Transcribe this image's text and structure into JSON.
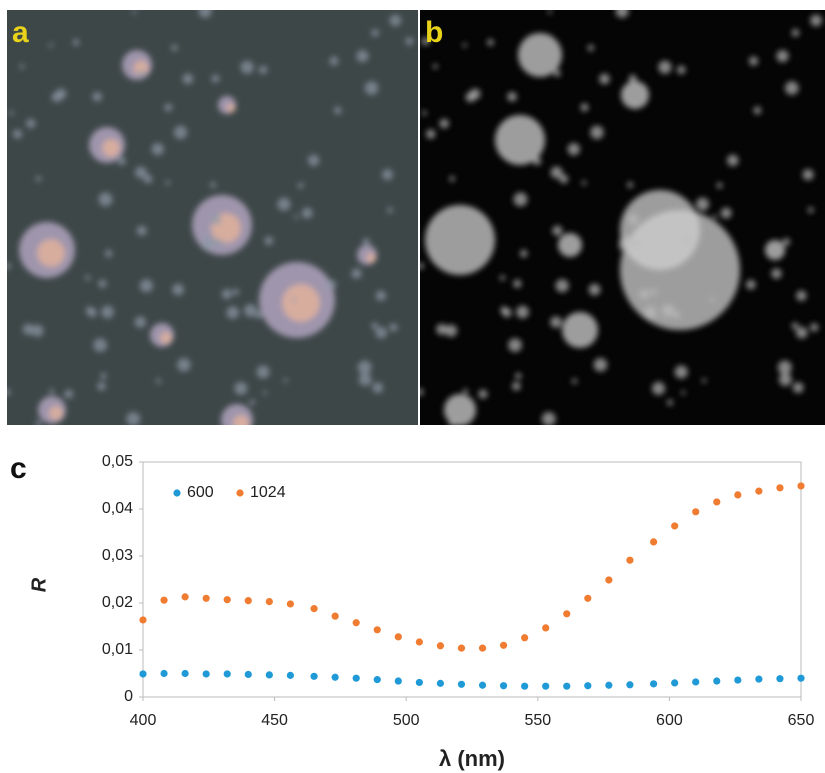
{
  "panel_labels": [
    "a",
    "b",
    "c"
  ],
  "chart_data": {
    "type": "scatter",
    "xlabel": "λ (nm)",
    "ylabel": "R",
    "x": [
      400,
      408,
      416,
      424,
      432,
      440,
      448,
      456,
      465,
      473,
      481,
      489,
      497,
      505,
      513,
      521,
      529,
      537,
      545,
      553,
      561,
      569,
      577,
      585,
      594,
      602,
      610,
      618,
      626,
      634,
      642,
      650
    ],
    "series": [
      {
        "name": "600",
        "color": "#1f9ad6",
        "values": [
          0.0049,
          0.005,
          0.005,
          0.0049,
          0.0049,
          0.0048,
          0.0047,
          0.0046,
          0.0044,
          0.0042,
          0.004,
          0.0037,
          0.0034,
          0.0031,
          0.0029,
          0.0027,
          0.0025,
          0.0024,
          0.0023,
          0.0023,
          0.0023,
          0.0024,
          0.0025,
          0.0026,
          0.0028,
          0.003,
          0.0032,
          0.0034,
          0.0036,
          0.0038,
          0.0039,
          0.004
        ]
      },
      {
        "name": "1024",
        "color": "#f07c32",
        "values": [
          0.0164,
          0.0206,
          0.0213,
          0.021,
          0.0207,
          0.0205,
          0.0203,
          0.0198,
          0.0188,
          0.0172,
          0.0158,
          0.0143,
          0.0128,
          0.0117,
          0.0109,
          0.0104,
          0.0104,
          0.011,
          0.0126,
          0.0147,
          0.0177,
          0.021,
          0.0249,
          0.0291,
          0.033,
          0.0364,
          0.0394,
          0.0415,
          0.043,
          0.0438,
          0.0445,
          0.0449
        ]
      }
    ],
    "xlim": [
      400,
      650
    ],
    "xticks": [
      400,
      450,
      500,
      550,
      600,
      650
    ],
    "ylim": [
      0,
      0.05
    ],
    "yticks": [
      0,
      {
        "value": 0.01,
        "label": "0,01"
      },
      {
        "value": 0.02,
        "label": "0,02"
      },
      {
        "value": 0.03,
        "label": "0,03"
      },
      {
        "value": 0.04,
        "label": "0,04"
      },
      {
        "value": 0.05,
        "label": "0,05"
      }
    ],
    "legend": "upper-left"
  }
}
